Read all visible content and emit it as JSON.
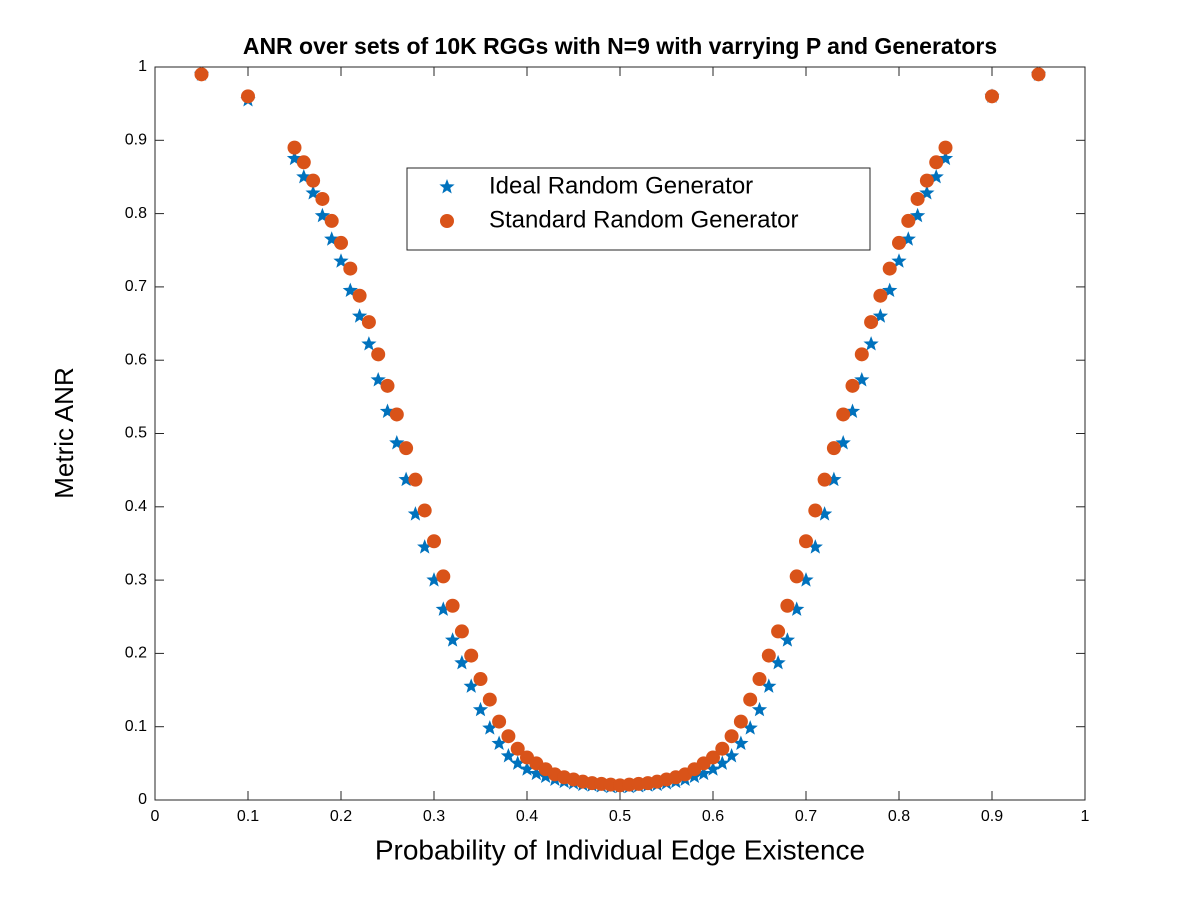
{
  "chart_data": {
    "type": "scatter",
    "title": "ANR over sets of 10K RGGs with N=9 with varrying P and Generators",
    "x_label": "Probability of Individual Edge Existence",
    "y_label": "Metric ANR",
    "xlim": [
      0,
      1
    ],
    "ylim": [
      0,
      1
    ],
    "xticks": [
      0,
      0.1,
      0.2,
      0.3,
      0.4,
      0.5,
      0.6,
      0.7,
      0.8,
      0.9,
      1
    ],
    "yticks": [
      0,
      0.1,
      0.2,
      0.3,
      0.4,
      0.5,
      0.6,
      0.7,
      0.8,
      0.9,
      1
    ],
    "legend": "north",
    "x": [
      0.05,
      0.1,
      0.15,
      0.16,
      0.17,
      0.18,
      0.19,
      0.2,
      0.21,
      0.22,
      0.23,
      0.24,
      0.25,
      0.26,
      0.27,
      0.28,
      0.29,
      0.3,
      0.31,
      0.32,
      0.33,
      0.34,
      0.35,
      0.36,
      0.37,
      0.38,
      0.39,
      0.4,
      0.41,
      0.42,
      0.43,
      0.44,
      0.45,
      0.46,
      0.47,
      0.48,
      0.49,
      0.5,
      0.51,
      0.52,
      0.53,
      0.54,
      0.55,
      0.56,
      0.57,
      0.58,
      0.59,
      0.6,
      0.61,
      0.62,
      0.63,
      0.64,
      0.65,
      0.66,
      0.67,
      0.68,
      0.69,
      0.7,
      0.71,
      0.72,
      0.73,
      0.74,
      0.75,
      0.76,
      0.77,
      0.78,
      0.79,
      0.8,
      0.81,
      0.82,
      0.83,
      0.84,
      0.85,
      0.9,
      0.95
    ],
    "series": [
      {
        "name": "Ideal Random Generator",
        "color": "#0072BD",
        "marker": "star",
        "values": [
          0.99,
          0.955,
          0.875,
          0.85,
          0.828,
          0.797,
          0.765,
          0.735,
          0.695,
          0.66,
          0.622,
          0.573,
          0.53,
          0.487,
          0.437,
          0.39,
          0.345,
          0.3,
          0.26,
          0.218,
          0.187,
          0.155,
          0.123,
          0.098,
          0.077,
          0.06,
          0.05,
          0.042,
          0.036,
          0.032,
          0.028,
          0.025,
          0.023,
          0.021,
          0.02,
          0.019,
          0.018,
          0.018,
          0.018,
          0.019,
          0.02,
          0.021,
          0.023,
          0.025,
          0.028,
          0.032,
          0.036,
          0.042,
          0.05,
          0.06,
          0.077,
          0.098,
          0.123,
          0.155,
          0.187,
          0.218,
          0.26,
          0.3,
          0.345,
          0.39,
          0.437,
          0.487,
          0.53,
          0.573,
          0.622,
          0.66,
          0.695,
          0.735,
          0.765,
          0.797,
          0.828,
          0.85,
          0.875,
          0.96,
          0.99
        ]
      },
      {
        "name": "Standard Random Generator",
        "color": "#D95319",
        "marker": "circle",
        "values": [
          0.99,
          0.96,
          0.89,
          0.87,
          0.845,
          0.82,
          0.79,
          0.76,
          0.725,
          0.688,
          0.652,
          0.608,
          0.565,
          0.526,
          0.48,
          0.437,
          0.395,
          0.353,
          0.305,
          0.265,
          0.23,
          0.197,
          0.165,
          0.137,
          0.107,
          0.087,
          0.07,
          0.058,
          0.05,
          0.042,
          0.035,
          0.031,
          0.028,
          0.025,
          0.023,
          0.022,
          0.021,
          0.02,
          0.021,
          0.022,
          0.023,
          0.025,
          0.028,
          0.031,
          0.035,
          0.042,
          0.05,
          0.058,
          0.07,
          0.087,
          0.107,
          0.137,
          0.165,
          0.197,
          0.23,
          0.265,
          0.305,
          0.353,
          0.395,
          0.437,
          0.48,
          0.526,
          0.565,
          0.608,
          0.652,
          0.688,
          0.725,
          0.76,
          0.79,
          0.82,
          0.845,
          0.87,
          0.89,
          0.96,
          0.99
        ]
      }
    ]
  }
}
